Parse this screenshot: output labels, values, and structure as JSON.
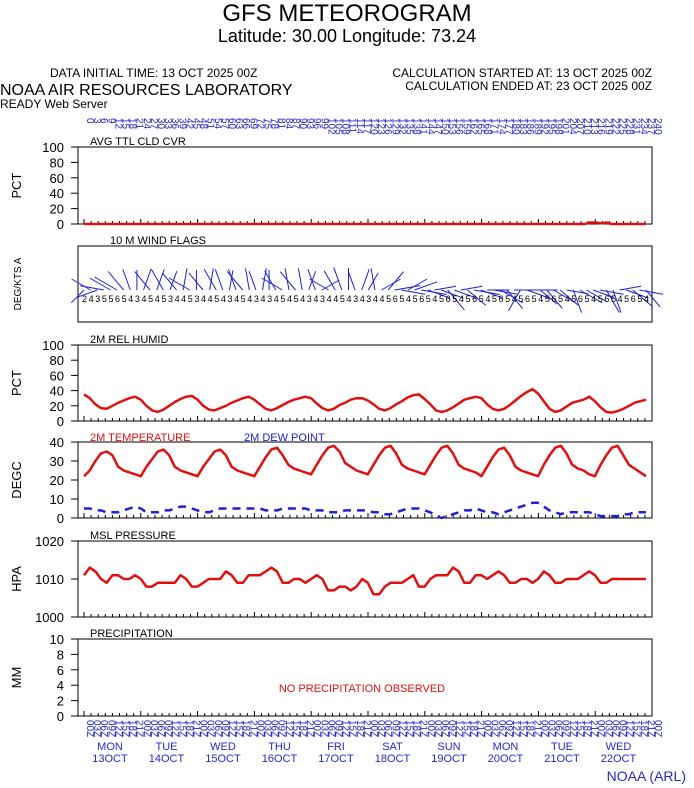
{
  "header": {
    "title": "GFS METEOROGRAM",
    "subtitle": "Latitude: 30.00 Longitude:  73.24",
    "data_initial_time": "DATA INITIAL TIME: 13 OCT 2025 00Z",
    "calc_started": "CALCULATION STARTED AT: 13 OCT 2025 00Z",
    "calc_ended": "CALCULATION ENDED AT: 23 OCT 2025 00Z",
    "lab": "NOAA AIR RESOURCES LABORATORY",
    "server": "READY Web Server"
  },
  "credit": "NOAA (ARL)",
  "colors": {
    "red": "#e01010",
    "blue": "#2020d0",
    "text_blue": "#2828c8"
  },
  "chart_data": [
    {
      "type": "line",
      "title": "AVG TTL CLD CVR",
      "ylabel": "PCT",
      "ylim": [
        0,
        100
      ],
      "yticks": [
        0,
        20,
        40,
        60,
        80,
        100
      ],
      "series": [
        {
          "color": "#e01010",
          "values": [
            0,
            0,
            0,
            0,
            0,
            0,
            0,
            0,
            0,
            0,
            0,
            0,
            0,
            0,
            0,
            0,
            0,
            0,
            0,
            0,
            0,
            0,
            0,
            0,
            0,
            0,
            0,
            0,
            0,
            0,
            0,
            0,
            0,
            0,
            0,
            0,
            0,
            0,
            0,
            0,
            0,
            0,
            0,
            0,
            0,
            0,
            0,
            0,
            0,
            0,
            0,
            0,
            0,
            0,
            0,
            0,
            0,
            0,
            0,
            0,
            0,
            0,
            0,
            0,
            0,
            0,
            0,
            0,
            0,
            0,
            0,
            0,
            0,
            0,
            0,
            0,
            0,
            0,
            0,
            0,
            0,
            0,
            0,
            0,
            0,
            0,
            0,
            0,
            0,
            0,
            0,
            0,
            0,
            0,
            0,
            0,
            0,
            0,
            0,
            0,
            0,
            0,
            0,
            0,
            0,
            0,
            0,
            0,
            0,
            0,
            0,
            0,
            0,
            0,
            0,
            0,
            0,
            0,
            0,
            0,
            0,
            0,
            0,
            0,
            0,
            0,
            0,
            0,
            0,
            0,
            0,
            0,
            0,
            0,
            0,
            0,
            0,
            0,
            0,
            0,
            0,
            0,
            0,
            0,
            0,
            0,
            0,
            0,
            0,
            0,
            0,
            0,
            0,
            0,
            0,
            0,
            0,
            0,
            0,
            0,
            0,
            0,
            0,
            0,
            0,
            0,
            0,
            0,
            0,
            0,
            0,
            0,
            0,
            0,
            0,
            0,
            0,
            0,
            0,
            0,
            0,
            0,
            0,
            0,
            0,
            0,
            0,
            0,
            0,
            0,
            0,
            0,
            0,
            0,
            0,
            0,
            0,
            0,
            0,
            0,
            0,
            0,
            0,
            0,
            0,
            0,
            0,
            0,
            0,
            0,
            0,
            0,
            0,
            0,
            0,
            1,
            2,
            2,
            2,
            2,
            1,
            1,
            1,
            2,
            1,
            0,
            0,
            0,
            0,
            0,
            0,
            0,
            0,
            0,
            0,
            0,
            0,
            0,
            0,
            0,
            0
          ]
        }
      ]
    },
    {
      "type": "wind",
      "title": "10 M  WIND FLAGS",
      "ylabel": "DEG/KTS  A",
      "directions_deg": [
        225,
        300,
        250,
        280,
        300,
        300,
        320,
        340,
        0,
        20,
        320,
        20,
        330,
        20,
        320,
        10,
        300,
        0,
        320,
        10,
        330,
        340,
        10,
        340,
        320,
        350,
        340,
        10,
        0,
        330,
        300,
        350,
        320,
        350,
        20,
        340,
        60,
        300,
        330,
        340,
        0,
        340,
        20,
        30,
        350,
        60,
        40,
        80,
        100,
        60,
        70,
        100,
        110,
        80,
        110,
        140,
        110,
        80,
        130,
        100,
        110,
        90,
        100,
        120,
        140,
        90,
        210,
        110,
        90,
        130,
        140,
        120,
        130,
        100,
        160,
        120,
        120,
        110,
        100,
        150,
        160,
        80,
        110,
        130,
        100,
        140
      ],
      "speeds_kts": [
        2,
        4,
        3,
        5,
        5,
        6,
        5,
        4,
        3,
        4,
        5,
        4,
        5,
        3,
        4,
        4,
        5,
        3,
        4,
        4,
        5,
        4,
        3,
        4,
        5,
        4,
        3,
        4,
        3,
        4,
        5,
        4,
        5,
        4,
        3,
        4,
        3,
        4,
        4,
        5,
        4,
        3,
        4,
        3,
        4,
        4,
        5,
        6,
        5,
        4,
        5,
        6,
        5,
        4,
        5,
        6,
        5,
        4,
        5,
        6,
        5,
        4,
        5,
        6,
        5,
        4,
        5,
        6,
        5,
        4,
        5,
        6,
        5,
        4,
        5,
        6,
        5,
        4,
        5,
        6,
        5,
        4,
        5,
        6,
        5,
        4
      ]
    },
    {
      "type": "line",
      "title": "2M REL HUMID",
      "ylabel": "PCT",
      "ylim": [
        0,
        100
      ],
      "yticks": [
        0,
        20,
        40,
        60,
        80,
        100
      ],
      "series": [
        {
          "color": "#e01010",
          "values": [
            35,
            30,
            22,
            17,
            16,
            20,
            24,
            27,
            30,
            32,
            28,
            20,
            14,
            12,
            15,
            20,
            25,
            29,
            32,
            33,
            28,
            20,
            15,
            14,
            17,
            20,
            24,
            27,
            30,
            32,
            28,
            22,
            16,
            14,
            17,
            21,
            25,
            28,
            30,
            32,
            30,
            23,
            17,
            14,
            16,
            21,
            24,
            28,
            30,
            30,
            27,
            22,
            16,
            14,
            17,
            22,
            26,
            31,
            34,
            35,
            29,
            22,
            14,
            12,
            14,
            18,
            23,
            28,
            30,
            32,
            30,
            22,
            16,
            14,
            16,
            21,
            27,
            33,
            38,
            42,
            36,
            26,
            16,
            12,
            14,
            19,
            24,
            26,
            28,
            32,
            26,
            18,
            12,
            11,
            13,
            16,
            20,
            24,
            26,
            28
          ]
        }
      ]
    },
    {
      "type": "line",
      "title": "",
      "ylabel": "DEGC",
      "legend": [
        "2M TEMPERATURE",
        "2M   DEW POINT"
      ],
      "ylim": [
        0,
        40
      ],
      "yticks": [
        0,
        10,
        20,
        30,
        40
      ],
      "series": [
        {
          "name": "2M TEMPERATURE",
          "color": "#e01010",
          "style": "solid",
          "values": [
            22,
            25,
            30,
            34,
            35,
            33,
            27,
            25,
            24,
            23,
            22,
            27,
            31,
            35,
            36,
            33,
            27,
            25,
            24,
            23,
            22,
            27,
            31,
            35,
            36,
            33,
            27,
            25,
            24,
            23,
            22,
            27,
            32,
            36,
            37,
            33,
            28,
            26,
            25,
            24,
            23,
            28,
            33,
            37,
            38,
            35,
            29,
            27,
            25,
            24,
            23,
            28,
            33,
            37,
            38,
            34,
            28,
            26,
            25,
            24,
            23,
            28,
            33,
            37,
            38,
            34,
            28,
            26,
            25,
            24,
            22,
            27,
            32,
            36,
            37,
            33,
            27,
            25,
            24,
            23,
            22,
            28,
            33,
            37,
            38,
            34,
            28,
            26,
            25,
            23,
            22,
            28,
            33,
            37,
            38,
            33,
            28,
            26,
            24,
            22
          ]
        },
        {
          "name": "2M   DEW POINT",
          "color": "#2020d0",
          "style": "dashed",
          "values": [
            5,
            5,
            4,
            4,
            3,
            3,
            3,
            4,
            5,
            6,
            5,
            3,
            3,
            3,
            4,
            4,
            5,
            6,
            6,
            5,
            4,
            3,
            3,
            4,
            5,
            5,
            5,
            5,
            5,
            5,
            5,
            5,
            4,
            4,
            4,
            5,
            5,
            5,
            5,
            5,
            4,
            4,
            4,
            3,
            3,
            3,
            4,
            4,
            4,
            4,
            4,
            3,
            3,
            2,
            2,
            3,
            4,
            5,
            5,
            5,
            4,
            3,
            1,
            0,
            1,
            2,
            3,
            4,
            4,
            5,
            4,
            3,
            3,
            2,
            3,
            4,
            5,
            6,
            7,
            8,
            8,
            6,
            4,
            3,
            2,
            3,
            3,
            3,
            3,
            3,
            2,
            1,
            1,
            1,
            1,
            2,
            2,
            3,
            3,
            3
          ]
        }
      ]
    },
    {
      "type": "line",
      "title": "MSL PRESSURE",
      "ylabel": "HPA",
      "ylim": [
        1000,
        1020
      ],
      "yticks": [
        1000,
        1010,
        1020
      ],
      "series": [
        {
          "color": "#e01010",
          "values": [
            1011,
            1013,
            1012,
            1010,
            1009,
            1011,
            1011,
            1010,
            1010,
            1011,
            1010,
            1008,
            1008,
            1009,
            1009,
            1009,
            1009,
            1011,
            1010,
            1008,
            1008,
            1009,
            1010,
            1010,
            1010,
            1012,
            1011,
            1009,
            1009,
            1011,
            1011,
            1011,
            1012,
            1013,
            1012,
            1009,
            1009,
            1010,
            1010,
            1009,
            1010,
            1011,
            1010,
            1007,
            1007,
            1008,
            1008,
            1007,
            1008,
            1010,
            1009,
            1006,
            1006,
            1008,
            1009,
            1009,
            1009,
            1010,
            1011,
            1008,
            1008,
            1010,
            1011,
            1011,
            1011,
            1013,
            1012,
            1009,
            1009,
            1011,
            1011,
            1010,
            1011,
            1012,
            1011,
            1009,
            1009,
            1010,
            1010,
            1009,
            1010,
            1012,
            1011,
            1009,
            1009,
            1010,
            1010,
            1010,
            1011,
            1012,
            1011,
            1009,
            1009,
            1010,
            1010,
            1010,
            1010,
            1010,
            1010,
            1010
          ]
        }
      ]
    },
    {
      "type": "line",
      "title": "PRECIPITATION",
      "ylabel": "MM",
      "ylim": [
        0,
        10
      ],
      "yticks": [
        0,
        2,
        4,
        6,
        8,
        10
      ],
      "annotation": "NO PRECIPITATION OBSERVED",
      "series": []
    }
  ],
  "time_axis": {
    "top_labels": [
      "0",
      "3",
      "6",
      "9",
      "12",
      "15",
      "18",
      "21",
      "24",
      "27",
      "30",
      "33",
      "36",
      "39",
      "42",
      "45",
      "48",
      "51",
      "54",
      "57",
      "60",
      "63",
      "66",
      "69",
      "72",
      "75",
      "78",
      "81",
      "84",
      "87",
      "90",
      "93",
      "96",
      "99",
      "102",
      "105",
      "108",
      "111",
      "114",
      "117",
      "120",
      "123",
      "126",
      "129",
      "132",
      "135",
      "138",
      "141",
      "144",
      "147",
      "150",
      "153",
      "156",
      "159",
      "162",
      "165",
      "168",
      "171",
      "174",
      "177",
      "180",
      "183",
      "186",
      "189",
      "192",
      "195",
      "198",
      "201",
      "204",
      "207",
      "210",
      "213",
      "216",
      "219",
      "222",
      "225",
      "228",
      "231",
      "234",
      "237",
      "240"
    ],
    "bottom_labels": [
      "00Z",
      "03Z",
      "06Z",
      "09Z",
      "12Z",
      "15Z",
      "18Z",
      "21Z",
      "00Z",
      "03Z",
      "06Z",
      "09Z",
      "12Z",
      "15Z",
      "18Z",
      "21Z",
      "00Z",
      "03Z",
      "06Z",
      "09Z",
      "12Z",
      "15Z",
      "18Z",
      "21Z",
      "00Z",
      "03Z",
      "06Z",
      "09Z",
      "12Z",
      "15Z",
      "18Z",
      "21Z",
      "00Z",
      "03Z",
      "06Z",
      "09Z",
      "12Z",
      "15Z",
      "18Z",
      "21Z",
      "00Z",
      "03Z",
      "06Z",
      "09Z",
      "12Z",
      "15Z",
      "18Z",
      "21Z",
      "00Z",
      "03Z",
      "06Z",
      "09Z",
      "12Z",
      "15Z",
      "18Z",
      "21Z",
      "00Z",
      "03Z",
      "06Z",
      "09Z",
      "12Z",
      "15Z",
      "18Z",
      "21Z",
      "00Z",
      "03Z",
      "06Z",
      "09Z",
      "12Z",
      "15Z",
      "18Z",
      "21Z",
      "00Z",
      "03Z",
      "06Z",
      "09Z",
      "12Z",
      "15Z",
      "18Z",
      "21Z",
      "00Z"
    ],
    "days": [
      {
        "dow": "MON",
        "date": "13OCT"
      },
      {
        "dow": "TUE",
        "date": "14OCT"
      },
      {
        "dow": "WED",
        "date": "15OCT"
      },
      {
        "dow": "THU",
        "date": "16OCT"
      },
      {
        "dow": "FRI",
        "date": "17OCT"
      },
      {
        "dow": "SAT",
        "date": "18OCT"
      },
      {
        "dow": "SUN",
        "date": "19OCT"
      },
      {
        "dow": "MON",
        "date": "20OCT"
      },
      {
        "dow": "TUE",
        "date": "21OCT"
      },
      {
        "dow": "WED",
        "date": "22OCT"
      }
    ]
  }
}
